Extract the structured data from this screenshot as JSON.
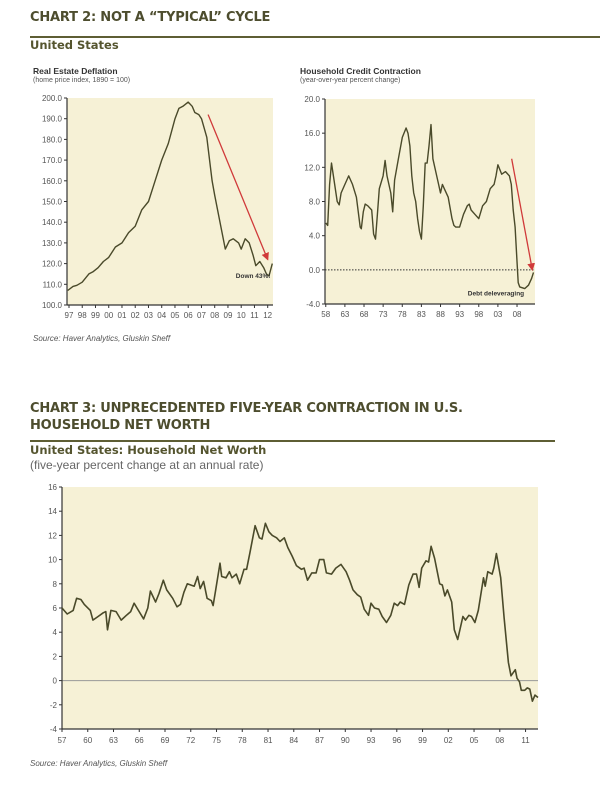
{
  "chart2": {
    "title": "CHART 2: NOT A “TYPICAL” CYCLE",
    "subtitle": "United States",
    "source": "Source: Haver Analytics, Gluskin Sheff"
  },
  "chart3": {
    "title_line1": "CHART 3: UNPRECEDENTED FIVE-YEAR CONTRACTION IN U.S.",
    "title_line2": "HOUSEHOLD NET WORTH",
    "subtitle": "United States: Household Net Worth",
    "subtitle2": "(five-year percent change at an annual rate)",
    "source": "Source: Haver Analytics, Gluskin Sheff"
  },
  "colors": {
    "line": "#4a4a2a",
    "plot_bg": "#f6f1d6",
    "arrow": "#d03a3a",
    "title": "#4d4d2e"
  },
  "chart_data": [
    {
      "type": "line",
      "title": "Real Estate Deflation",
      "subtitle": "(home price index, 1890 = 100)",
      "xlim": [
        1996.85,
        2012.4
      ],
      "ylim": [
        100,
        200
      ],
      "yticks": [
        100,
        110,
        120,
        130,
        140,
        150,
        160,
        170,
        180,
        190,
        200
      ],
      "ytick_labels": [
        "100.0",
        "110.0",
        "120.0",
        "130.0",
        "140.0",
        "150.0",
        "160.0",
        "170.0",
        "180.0",
        "190.0",
        "200.0"
      ],
      "xticks": [
        1997,
        1998,
        1999,
        2000,
        2001,
        2002,
        2003,
        2004,
        2005,
        2006,
        2007,
        2008,
        2009,
        2010,
        2011,
        2012
      ],
      "xtick_labels": [
        "97",
        "98",
        "99",
        "00",
        "01",
        "02",
        "03",
        "04",
        "05",
        "06",
        "07",
        "08",
        "09",
        "10",
        "11",
        "12"
      ],
      "zero_line": false,
      "annotation": "Down 43%!",
      "annotation_at": [
        2010.9,
        113
      ],
      "arrow": {
        "from": [
          2007.5,
          192
        ],
        "to": [
          2012.0,
          122
        ]
      },
      "x": [
        1996.9,
        1997.3,
        1997.6,
        1998.0,
        1998.5,
        1998.8,
        1999.2,
        1999.6,
        2000.0,
        2000.5,
        2001.0,
        2001.5,
        2002.0,
        2002.5,
        2003.0,
        2003.5,
        2004.0,
        2004.5,
        2005.0,
        2005.3,
        2005.6,
        2006.0,
        2006.3,
        2006.5,
        2006.8,
        2007.0,
        2007.4,
        2007.8,
        2008.0,
        2008.4,
        2008.8,
        2009.1,
        2009.4,
        2009.8,
        2010.0,
        2010.3,
        2010.6,
        2010.9,
        2011.1,
        2011.4,
        2011.7,
        2011.9,
        2012.1,
        2012.35
      ],
      "y": [
        107,
        109,
        109.5,
        111,
        115,
        116,
        118,
        121,
        123,
        128,
        130,
        135,
        138,
        146,
        150,
        160,
        170,
        178,
        190,
        195,
        196,
        198,
        196,
        193,
        192,
        190,
        181,
        160,
        153,
        140,
        127,
        131,
        132,
        130,
        127,
        132,
        130,
        124,
        119,
        121,
        118,
        115,
        114,
        120
      ]
    },
    {
      "type": "line",
      "title": "Household Credit Contraction",
      "subtitle": "(year-over-year percent change)",
      "xlim": [
        1957.8,
        2012.7
      ],
      "ylim": [
        -4,
        20
      ],
      "yticks": [
        -4,
        0,
        4,
        8,
        12,
        16,
        20
      ],
      "ytick_labels": [
        "-4.0",
        "0.0",
        "4.0",
        "8.0",
        "12.0",
        "16.0",
        "20.0"
      ],
      "xticks": [
        1958,
        1963,
        1968,
        1973,
        1978,
        1983,
        1988,
        1993,
        1998,
        2003,
        2008
      ],
      "xtick_labels": [
        "58",
        "63",
        "68",
        "73",
        "78",
        "83",
        "88",
        "93",
        "98",
        "03",
        "08"
      ],
      "zero_line": true,
      "annotation": "Debt deleveraging",
      "annotation_at": [
        2002.5,
        -3.0
      ],
      "arrow": {
        "from": [
          2006.6,
          13
        ],
        "to": [
          2012.0,
          0
        ]
      },
      "x": [
        1958.0,
        1958.5,
        1959.0,
        1959.5,
        1960.0,
        1961.0,
        1961.5,
        1962.0,
        1963.0,
        1964.0,
        1965.0,
        1966.0,
        1967.0,
        1967.3,
        1967.8,
        1968.3,
        1969.0,
        1970.0,
        1970.5,
        1971.0,
        1971.5,
        1972.0,
        1973.0,
        1973.5,
        1974.0,
        1975.0,
        1975.5,
        1976.0,
        1977.0,
        1978.0,
        1979.0,
        1979.5,
        1980.0,
        1980.5,
        1981.0,
        1981.5,
        1982.0,
        1982.5,
        1983.0,
        1983.5,
        1984.0,
        1984.5,
        1985.0,
        1985.5,
        1986.0,
        1987.0,
        1987.5,
        1988.0,
        1988.5,
        1989.0,
        1990.0,
        1991.0,
        1991.5,
        1992.0,
        1993.0,
        1994.0,
        1995.0,
        1995.5,
        1996.0,
        1997.0,
        1998.0,
        1999.0,
        2000.0,
        2001.0,
        2002.0,
        2002.5,
        2003.0,
        2004.0,
        2005.0,
        2006.0,
        2006.5,
        2007.0,
        2007.5,
        2008.0,
        2008.3,
        2008.7,
        2010.0,
        2011.0,
        2011.8,
        2012.3
      ],
      "y": [
        5.5,
        5.2,
        10,
        12.5,
        11,
        8,
        7.6,
        9,
        10,
        11,
        10,
        8.5,
        5,
        4.8,
        6.8,
        7.7,
        7.5,
        7,
        4.2,
        3.6,
        6.5,
        9.5,
        11,
        12.8,
        11,
        9,
        6.8,
        10.5,
        13,
        15.5,
        16.6,
        16,
        14.5,
        11,
        9,
        8,
        6,
        4.5,
        3.6,
        7.5,
        12.5,
        12.5,
        14.5,
        17,
        13,
        11,
        10,
        9,
        10,
        9.5,
        8.5,
        6,
        5.2,
        5,
        5,
        6.5,
        7.5,
        7.7,
        7,
        6.5,
        6,
        7.5,
        8,
        9.5,
        10,
        11,
        12.3,
        11.2,
        11.5,
        11,
        10,
        7,
        5,
        1,
        -1.5,
        -2,
        -2.2,
        -1.8,
        -1,
        -0.3
      ]
    },
    {
      "type": "line",
      "title": "United States: Household Net Worth",
      "subtitle": "(five-year percent change at an annual rate)",
      "xlim": [
        1957.0,
        2012.45
      ],
      "ylim": [
        -4,
        16
      ],
      "yticks": [
        -4,
        -2,
        0,
        2,
        4,
        6,
        8,
        10,
        12,
        14,
        16
      ],
      "ytick_labels": [
        "-4",
        "-2",
        "0",
        "2",
        "4",
        "6",
        "8",
        "10",
        "12",
        "14",
        "16"
      ],
      "xticks": [
        1957,
        1960,
        1963,
        1966,
        1969,
        1972,
        1975,
        1978,
        1981,
        1984,
        1987,
        1990,
        1993,
        1996,
        1999,
        2002,
        2005,
        2008,
        2011
      ],
      "xtick_labels": [
        "57",
        "60",
        "63",
        "66",
        "69",
        "72",
        "75",
        "78",
        "81",
        "84",
        "87",
        "90",
        "93",
        "96",
        "99",
        "02",
        "05",
        "08",
        "11"
      ],
      "zero_line": true,
      "x": [
        1957.0,
        1957.6,
        1958.3,
        1958.7,
        1959.2,
        1959.6,
        1960.3,
        1960.6,
        1961.2,
        1961.8,
        1962.1,
        1962.3,
        1962.7,
        1963.3,
        1963.9,
        1964.5,
        1965.0,
        1965.4,
        1965.9,
        1966.5,
        1967.0,
        1967.3,
        1967.9,
        1968.3,
        1968.8,
        1969.2,
        1969.9,
        1970.4,
        1970.8,
        1971.2,
        1971.6,
        1972.4,
        1972.8,
        1973.1,
        1973.5,
        1973.9,
        1974.4,
        1974.6,
        1974.9,
        1975.4,
        1975.6,
        1976.1,
        1976.5,
        1976.8,
        1977.3,
        1977.7,
        1978.2,
        1978.5,
        1978.9,
        1979.5,
        1980.0,
        1980.3,
        1980.7,
        1981.1,
        1981.5,
        1982.0,
        1982.4,
        1982.9,
        1983.3,
        1983.8,
        1984.3,
        1984.9,
        1985.2,
        1985.6,
        1986.1,
        1986.6,
        1987.0,
        1987.5,
        1987.8,
        1988.4,
        1988.9,
        1989.5,
        1990.1,
        1990.5,
        1990.9,
        1991.4,
        1991.8,
        1992.2,
        1992.7,
        1993.0,
        1993.4,
        1993.9,
        1994.3,
        1994.8,
        1995.3,
        1995.7,
        1996.1,
        1996.4,
        1996.9,
        1997.4,
        1997.9,
        1998.3,
        1998.6,
        1998.9,
        1999.4,
        1999.7,
        2000.0,
        2000.4,
        2001.0,
        2001.3,
        2001.6,
        2001.9,
        2002.4,
        2002.7,
        2003.1,
        2003.7,
        2004.0,
        2004.4,
        2004.7,
        2005.1,
        2005.5,
        2006.1,
        2006.3,
        2006.6,
        2007.1,
        2007.3,
        2007.6,
        2008.1,
        2008.5,
        2009.0,
        2009.3,
        2009.8,
        2010.0,
        2010.3,
        2010.5,
        2010.9,
        2011.2,
        2011.5,
        2011.8,
        2012.1,
        2012.45
      ],
      "y": [
        6,
        5.5,
        5.8,
        6.8,
        6.7,
        6.3,
        5.8,
        5.0,
        5.3,
        5.6,
        5.7,
        4.2,
        5.8,
        5.7,
        5.0,
        5.4,
        5.7,
        6.4,
        5.8,
        5.1,
        6.0,
        7.4,
        6.5,
        7.2,
        8.3,
        7.5,
        6.8,
        6.1,
        6.3,
        7.3,
        8.0,
        7.8,
        8.6,
        7.6,
        8.2,
        6.8,
        6.6,
        6.2,
        7.5,
        9.7,
        8.6,
        8.5,
        9.0,
        8.5,
        8.8,
        8.0,
        9.2,
        9.2,
        10.6,
        12.8,
        11.8,
        11.7,
        13.0,
        12.3,
        12.0,
        11.8,
        11.5,
        11.8,
        11.0,
        10.3,
        9.5,
        9.2,
        9.3,
        8.3,
        8.9,
        8.9,
        10.0,
        10.0,
        8.9,
        8.8,
        9.3,
        9.6,
        9.0,
        8.3,
        7.5,
        7.1,
        6.9,
        5.9,
        5.4,
        6.4,
        6.0,
        5.9,
        5.3,
        4.8,
        5.4,
        6.4,
        6.2,
        6.5,
        6.3,
        7.9,
        8.8,
        8.8,
        7.7,
        9.3,
        9.9,
        9.8,
        11.1,
        10.1,
        8.0,
        7.9,
        7.0,
        7.5,
        6.5,
        4.2,
        3.4,
        5.3,
        5.0,
        5.4,
        5.3,
        4.8,
        5.8,
        8.5,
        7.8,
        9.0,
        8.8,
        9.3,
        10.5,
        8.5,
        5.2,
        1.5,
        0.4,
        0.9,
        0.2,
        -0.1,
        -0.8,
        -0.8,
        -0.6,
        -0.7,
        -1.7,
        -1.2,
        -1.4
      ]
    }
  ]
}
